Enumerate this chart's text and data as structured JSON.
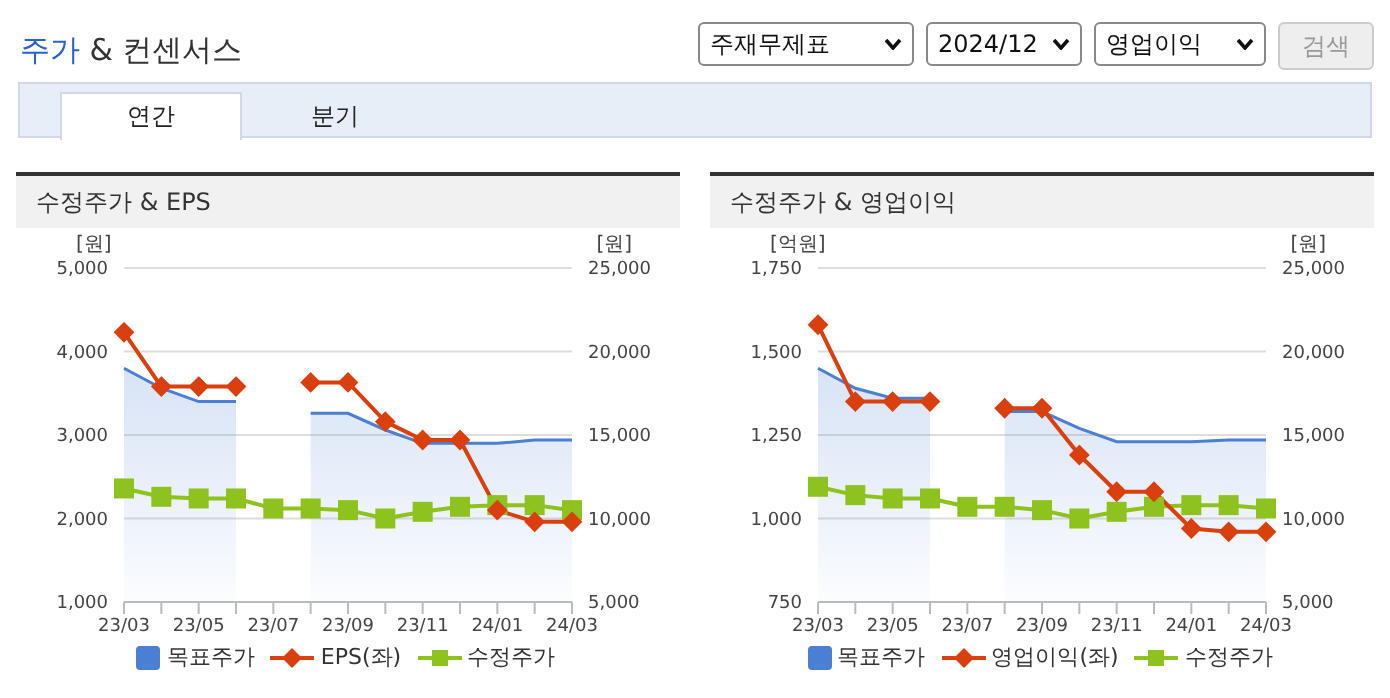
{
  "chart_data": [
    {
      "type": "other",
      "title": "주가 & 컨센서스",
      "annotations": [
        "주재무제표",
        "2024/12",
        "영업이익",
        "검색",
        "연간",
        "분기"
      ]
    },
    {
      "type": "line",
      "title": "수정주가 & EPS",
      "ylabel": "[원]",
      "y2label": "[원]",
      "categories": [
        "23/03",
        null,
        "23/05",
        null,
        "23/07",
        null,
        "23/09",
        null,
        "23/11",
        null,
        "24/01",
        null,
        "24/03"
      ],
      "series": [
        {
          "name": "목표주가",
          "type": "area",
          "axis": "y2",
          "color": "#4a7fd4",
          "marker": "none",
          "values": [
            19000,
            17800,
            17000,
            17000,
            null,
            16300,
            16300,
            15300,
            14500,
            14500,
            14500,
            14700,
            14700
          ]
        },
        {
          "name": "EPS(좌)",
          "type": "line",
          "axis": "y",
          "color": "#d9400e",
          "marker": "diamond",
          "values": [
            4230,
            3580,
            3580,
            3580,
            null,
            3630,
            3630,
            3160,
            2940,
            2940,
            2100,
            1960,
            1960
          ]
        },
        {
          "name": "수정주가",
          "type": "line",
          "axis": "y2",
          "color": "#8dc21f",
          "marker": "square",
          "values": [
            11800,
            11300,
            11200,
            11200,
            10600,
            10600,
            10500,
            10000,
            10400,
            10700,
            10800,
            10800,
            10500
          ]
        }
      ],
      "ylim": [
        1000,
        5000
      ],
      "yticks": [
        {
          "value": 1000,
          "label": "1,000"
        },
        {
          "value": 2000,
          "label": "2,000"
        },
        {
          "value": 3000,
          "label": "3,000"
        },
        {
          "value": 4000,
          "label": "4,000"
        },
        {
          "value": 5000,
          "label": "5,000"
        }
      ],
      "y2lim": [
        5000,
        25000
      ],
      "y2ticks": [
        {
          "value": 5000,
          "label": "5,000"
        },
        {
          "value": 10000,
          "label": "10,000"
        },
        {
          "value": 15000,
          "label": "15,000"
        },
        {
          "value": 20000,
          "label": "20,000"
        },
        {
          "value": 25000,
          "label": "25,000"
        }
      ],
      "grid": "y",
      "legend": "bottom"
    },
    {
      "type": "line",
      "title": "수정주가 & 영업이익",
      "ylabel": "[억원]",
      "y2label": "[원]",
      "categories": [
        "23/03",
        null,
        "23/05",
        null,
        "23/07",
        null,
        "23/09",
        null,
        "23/11",
        null,
        "24/01",
        null,
        "24/03"
      ],
      "series": [
        {
          "name": "목표주가",
          "type": "area",
          "axis": "y2",
          "color": "#4a7fd4",
          "marker": "none",
          "values": [
            19000,
            17800,
            17200,
            17200,
            null,
            16400,
            16400,
            15400,
            14600,
            14600,
            14600,
            14700,
            14700
          ]
        },
        {
          "name": "영업이익(좌)",
          "type": "line",
          "axis": "y",
          "color": "#d9400e",
          "marker": "diamond",
          "values": [
            1580,
            1350,
            1350,
            1350,
            null,
            1330,
            1330,
            1190,
            1080,
            1080,
            970,
            960,
            960
          ]
        },
        {
          "name": "수정주가",
          "type": "line",
          "axis": "y2",
          "color": "#8dc21f",
          "marker": "square",
          "values": [
            11900,
            11400,
            11200,
            11200,
            10700,
            10700,
            10500,
            10000,
            10400,
            10700,
            10800,
            10800,
            10600
          ]
        }
      ],
      "ylim": [
        750,
        1750
      ],
      "yticks": [
        750,
        {
          "value": 1000,
          "label": "1,000"
        },
        {
          "value": 1250,
          "label": "1,250"
        },
        {
          "value": 1500,
          "label": "1,500"
        },
        {
          "value": 1750,
          "label": "1,750"
        }
      ],
      "y2lim": [
        5000,
        25000
      ],
      "y2ticks": [
        {
          "value": 5000,
          "label": "5,000"
        },
        {
          "value": 10000,
          "label": "10,000"
        },
        {
          "value": 15000,
          "label": "15,000"
        },
        {
          "value": 20000,
          "label": "20,000"
        },
        {
          "value": 25000,
          "label": "25,000"
        }
      ],
      "grid": "y",
      "legend": "bottom"
    }
  ]
}
